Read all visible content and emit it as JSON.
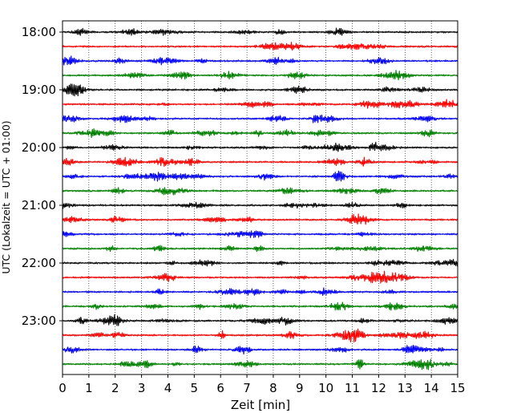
{
  "chart_data": {
    "type": "line",
    "title": "",
    "xlabel": "Zeit  [min]",
    "ylabel": "UTC (Lokalzeit = UTC + 01:00)",
    "xlim": [
      0,
      15
    ],
    "x_ticks": [
      "0",
      "1",
      "2",
      "3",
      "4",
      "5",
      "6",
      "7",
      "8",
      "9",
      "10",
      "11",
      "12",
      "13",
      "14",
      "15"
    ],
    "y_ticks": [
      "18:00",
      "19:00",
      "20:00",
      "21:00",
      "22:00",
      "23:00"
    ],
    "grid": "vertical dotted lines at each minute",
    "trace_interval_minutes": 15,
    "series": [
      {
        "start": "18:00",
        "color": "#000000"
      },
      {
        "start": "18:15",
        "color": "#ff0000"
      },
      {
        "start": "18:30",
        "color": "#0000ff"
      },
      {
        "start": "18:45",
        "color": "#008000"
      },
      {
        "start": "19:00",
        "color": "#000000"
      },
      {
        "start": "19:15",
        "color": "#ff0000"
      },
      {
        "start": "19:30",
        "color": "#0000ff"
      },
      {
        "start": "19:45",
        "color": "#008000"
      },
      {
        "start": "20:00",
        "color": "#000000"
      },
      {
        "start": "20:15",
        "color": "#ff0000"
      },
      {
        "start": "20:30",
        "color": "#0000ff"
      },
      {
        "start": "20:45",
        "color": "#008000"
      },
      {
        "start": "21:00",
        "color": "#000000"
      },
      {
        "start": "21:15",
        "color": "#ff0000"
      },
      {
        "start": "21:30",
        "color": "#0000ff"
      },
      {
        "start": "21:45",
        "color": "#008000"
      },
      {
        "start": "22:00",
        "color": "#000000"
      },
      {
        "start": "22:15",
        "color": "#ff0000"
      },
      {
        "start": "22:30",
        "color": "#0000ff"
      },
      {
        "start": "22:45",
        "color": "#008000"
      },
      {
        "start": "23:00",
        "color": "#000000"
      },
      {
        "start": "23:15",
        "color": "#ff0000"
      },
      {
        "start": "23:30",
        "color": "#0000ff"
      },
      {
        "start": "23:45",
        "color": "#008000"
      }
    ]
  }
}
